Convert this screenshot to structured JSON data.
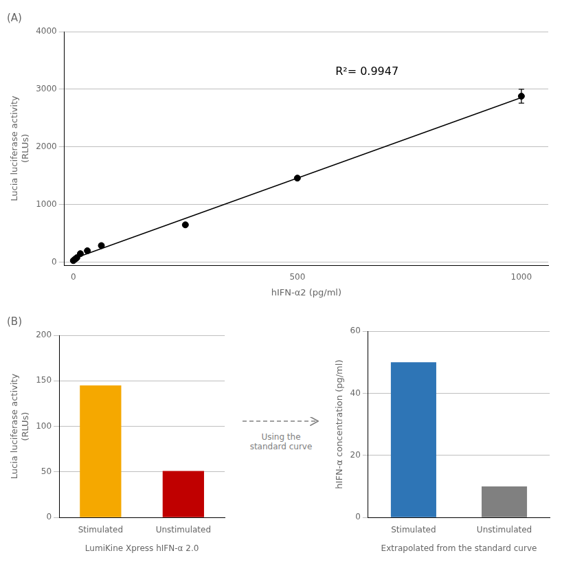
{
  "chart_data": [
    {
      "type": "scatter",
      "title": "(A)",
      "annotation": "R²= 0.9947",
      "xlabel": "hIFN-α2 (pg/ml)",
      "ylabel": "Lucia luciferase activity\n(RLUs)",
      "series": [
        {
          "type": "scatter",
          "color": "#000000",
          "marker": "circle",
          "x": [
            0,
            3.9,
            7.8,
            15.6,
            31.25,
            62.5,
            250,
            500,
            1000
          ],
          "values": [
            30,
            55,
            80,
            150,
            200,
            290,
            650,
            1460,
            2880
          ],
          "yerr": [
            0,
            0,
            0,
            0,
            0,
            0,
            0,
            0,
            120
          ]
        },
        {
          "type": "line",
          "color": "#000000",
          "line_style": "solid",
          "x": [
            0,
            1000
          ],
          "values": [
            62.93,
            2857.42
          ]
        }
      ],
      "xlim": [
        -20,
        1060
      ],
      "xticks": [
        0,
        500,
        1000
      ],
      "ylim": [
        -50,
        4000
      ],
      "yticks": [
        0,
        1000,
        2000,
        3000,
        4000
      ],
      "grid": "y"
    },
    {
      "type": "bar",
      "title": "(B)",
      "categories": [
        "Stimulated",
        "Unstimulated"
      ],
      "values": [
        145,
        51
      ],
      "colors": [
        "#F5A800",
        "#C00000"
      ],
      "ylabel": "Lucia luciferase activity\n(RLUs)",
      "xlabel": "LumiKine Xpress hIFN-α 2.0",
      "ylim": [
        0,
        200
      ],
      "yticks": [
        0,
        50,
        100,
        150,
        200
      ],
      "grid": "y"
    },
    {
      "type": "bar",
      "categories": [
        "Stimulated",
        "Unstimulated"
      ],
      "values": [
        50,
        10
      ],
      "colors": [
        "#2E75B6",
        "#808080"
      ],
      "ylabel": "hIFN-α concentration (pg/ml)",
      "xlabel": "Extrapolated from the standard curve",
      "annotation": "Using the\nstandard curve",
      "ylim": [
        0,
        60
      ],
      "yticks": [
        0,
        20,
        40,
        60
      ],
      "grid": "y"
    }
  ]
}
